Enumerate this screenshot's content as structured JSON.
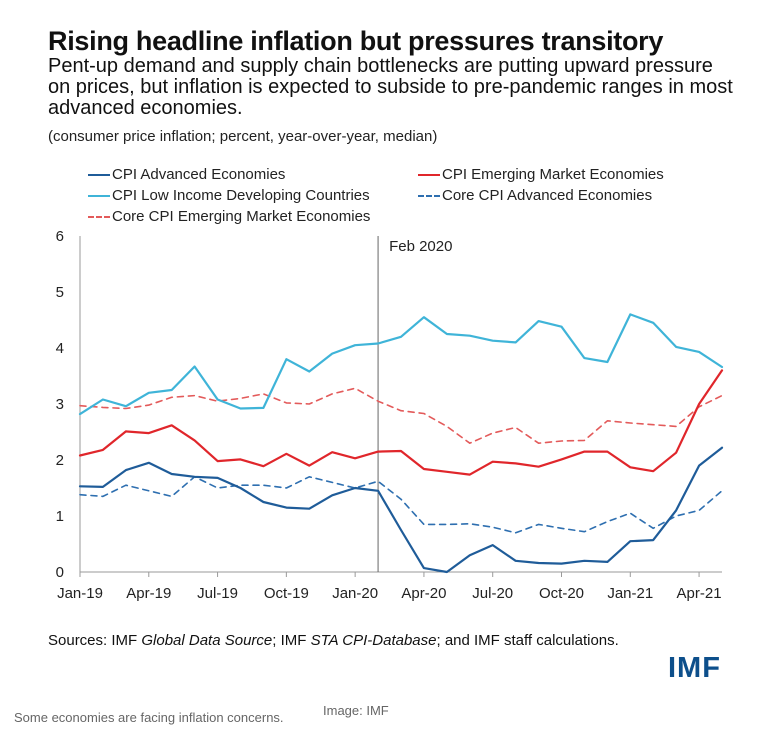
{
  "header": {
    "title": "Rising headline inflation but pressures transitory",
    "subtitle": "Pent-up demand and supply chain bottlenecks are putting upward pressure on prices, but inflation is expected to subside to pre-pandemic ranges in most advanced economies.",
    "note": "(consumer price inflation; percent, year-over-year, median)"
  },
  "colors": {
    "cpi_ae": "#1f5c99",
    "cpi_em": "#e0262b",
    "cpi_lidc": "#3fb4d8",
    "core_ae": "#2e6fb0",
    "core_em": "#e35a5a"
  },
  "chart_data": {
    "type": "line",
    "x": [
      "Jan-19",
      "Feb-19",
      "Mar-19",
      "Apr-19",
      "May-19",
      "Jun-19",
      "Jul-19",
      "Aug-19",
      "Sep-19",
      "Oct-19",
      "Nov-19",
      "Dec-19",
      "Jan-20",
      "Feb-20",
      "Mar-20",
      "Apr-20",
      "May-20",
      "Jun-20",
      "Jul-20",
      "Aug-20",
      "Sep-20",
      "Oct-20",
      "Nov-20",
      "Dec-20",
      "Jan-21",
      "Feb-21",
      "Mar-21",
      "Apr-21",
      "May-21"
    ],
    "x_tick_labels": [
      "Jan-19",
      "Apr-19",
      "Jul-19",
      "Oct-19",
      "Jan-20",
      "Apr-20",
      "Jul-20",
      "Oct-20",
      "Jan-21",
      "Apr-21"
    ],
    "ylim": [
      0,
      6
    ],
    "y_ticks": [
      "0",
      "1",
      "2",
      "3",
      "4",
      "5",
      "6"
    ],
    "annotation": {
      "x": "Feb-20",
      "label": "Feb 2020"
    },
    "legend_placement": "top",
    "series": [
      {
        "name": "CPI Advanced Economies",
        "key": "cpi_ae",
        "style": "solid",
        "values": [
          1.53,
          1.52,
          1.82,
          1.95,
          1.75,
          1.7,
          1.68,
          1.5,
          1.25,
          1.15,
          1.13,
          1.37,
          1.5,
          1.45,
          0.75,
          0.07,
          0.0,
          0.3,
          0.48,
          0.2,
          0.16,
          0.15,
          0.2,
          0.18,
          0.55,
          0.57,
          1.1,
          1.9,
          2.22
        ]
      },
      {
        "name": "CPI Emerging Market Economies",
        "key": "cpi_em",
        "style": "solid",
        "values": [
          2.08,
          2.18,
          2.51,
          2.48,
          2.62,
          2.35,
          1.98,
          2.01,
          1.89,
          2.11,
          1.9,
          2.14,
          2.03,
          2.15,
          2.16,
          1.84,
          1.79,
          1.74,
          1.97,
          1.94,
          1.88,
          2.01,
          2.15,
          2.15,
          1.87,
          1.8,
          2.13,
          3.0,
          3.6
        ]
      },
      {
        "name": "CPI Low Income Developing Countries",
        "key": "cpi_lidc",
        "style": "solid",
        "values": [
          2.82,
          3.08,
          2.96,
          3.2,
          3.25,
          3.67,
          3.08,
          2.92,
          2.93,
          3.8,
          3.58,
          3.9,
          4.05,
          4.08,
          4.2,
          4.55,
          4.25,
          4.22,
          4.13,
          4.1,
          4.48,
          4.38,
          3.82,
          3.75,
          4.6,
          4.45,
          4.02,
          3.93,
          3.66
        ]
      },
      {
        "name": "Core CPI Advanced Economies",
        "key": "core_ae",
        "style": "dashed",
        "values": [
          1.38,
          1.35,
          1.55,
          1.45,
          1.35,
          1.7,
          1.5,
          1.55,
          1.55,
          1.5,
          1.7,
          1.6,
          1.5,
          1.62,
          1.3,
          0.85,
          0.85,
          0.86,
          0.8,
          0.7,
          0.85,
          0.78,
          0.72,
          0.9,
          1.05,
          0.78,
          1.0,
          1.1,
          1.45
        ]
      },
      {
        "name": "Core CPI Emerging Market Economies",
        "key": "core_em",
        "style": "dashed",
        "values": [
          2.97,
          2.94,
          2.92,
          2.98,
          3.12,
          3.15,
          3.05,
          3.1,
          3.18,
          3.02,
          3.0,
          3.18,
          3.28,
          3.05,
          2.88,
          2.83,
          2.6,
          2.3,
          2.48,
          2.58,
          2.3,
          2.34,
          2.35,
          2.7,
          2.66,
          2.63,
          2.6,
          2.95,
          3.15
        ]
      }
    ]
  },
  "footer": {
    "sources_prefix": "Sources: IMF ",
    "sources_italic_1": "Global Data Source",
    "sources_mid": "; IMF ",
    "sources_italic_2": "STA CPI-Database",
    "sources_suffix": "; and IMF staff calculations.",
    "logo": "IMF",
    "caption": "Some economies are facing inflation concerns.",
    "credit": "Image: IMF"
  }
}
